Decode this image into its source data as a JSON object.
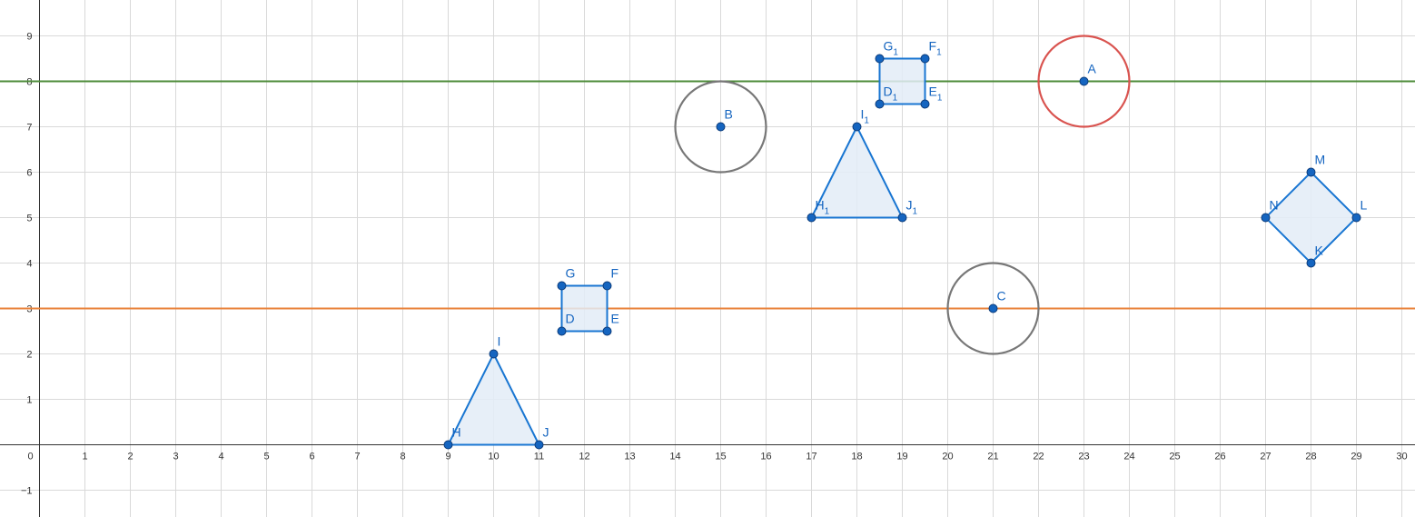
{
  "axes": {
    "x_range": [
      -1,
      31
    ],
    "y_range": [
      -1.6,
      9.8
    ],
    "x_ticks": [
      0,
      1,
      2,
      3,
      4,
      5,
      6,
      7,
      8,
      9,
      10,
      11,
      12,
      13,
      14,
      15,
      16,
      17,
      18,
      19,
      20,
      21,
      22,
      23,
      24,
      25,
      26,
      27,
      28,
      29,
      30
    ],
    "y_ticks": [
      -1,
      1,
      2,
      3,
      4,
      5,
      6,
      7,
      8,
      9
    ],
    "y_tick_labels": [
      "−1",
      "1",
      "2",
      "3",
      "4",
      "5",
      "6",
      "7",
      "8",
      "9"
    ],
    "grid": true
  },
  "colors": {
    "point_fill": "#1565c0",
    "point_stroke": "#0d3c7a",
    "polygon_stroke": "#1976d2",
    "polygon_fill": "#e3ecf7",
    "gray_circle": "#777777",
    "red_circle": "#d9534f",
    "green_line": "#4e8c3a",
    "orange_line": "#e9823a",
    "label": "#1565c0"
  },
  "lines": [
    {
      "y": 8,
      "color": "#4e8c3a"
    },
    {
      "y": 3,
      "color": "#e9823a"
    }
  ],
  "circles": [
    {
      "cx": 15,
      "cy": 7,
      "r": 1,
      "color": "#777777"
    },
    {
      "cx": 21,
      "cy": 3,
      "r": 1,
      "color": "#777777"
    },
    {
      "cx": 23,
      "cy": 8,
      "r": 1,
      "color": "#d9534f"
    }
  ],
  "polygons": [
    {
      "points": [
        [
          9,
          0
        ],
        [
          10,
          2
        ],
        [
          11,
          0
        ]
      ]
    },
    {
      "points": [
        [
          11.5,
          2.5
        ],
        [
          12.5,
          2.5
        ],
        [
          12.5,
          3.5
        ],
        [
          11.5,
          3.5
        ]
      ]
    },
    {
      "points": [
        [
          17,
          5
        ],
        [
          18,
          7
        ],
        [
          19,
          5
        ]
      ]
    },
    {
      "points": [
        [
          18.5,
          7.5
        ],
        [
          19.5,
          7.5
        ],
        [
          19.5,
          8.5
        ],
        [
          18.5,
          8.5
        ]
      ]
    },
    {
      "points": [
        [
          28,
          4
        ],
        [
          29,
          5
        ],
        [
          28,
          6
        ],
        [
          27,
          5
        ]
      ]
    }
  ],
  "points": [
    {
      "name": "A",
      "sub": "",
      "x": 23,
      "y": 8
    },
    {
      "name": "B",
      "sub": "",
      "x": 15,
      "y": 7
    },
    {
      "name": "C",
      "sub": "",
      "x": 21,
      "y": 3
    },
    {
      "name": "D",
      "sub": "",
      "x": 11.5,
      "y": 2.5
    },
    {
      "name": "E",
      "sub": "",
      "x": 12.5,
      "y": 2.5
    },
    {
      "name": "F",
      "sub": "",
      "x": 12.5,
      "y": 3.5
    },
    {
      "name": "G",
      "sub": "",
      "x": 11.5,
      "y": 3.5
    },
    {
      "name": "H",
      "sub": "",
      "x": 9,
      "y": 0
    },
    {
      "name": "I",
      "sub": "",
      "x": 10,
      "y": 2
    },
    {
      "name": "J",
      "sub": "",
      "x": 11,
      "y": 0
    },
    {
      "name": "D",
      "sub": "1",
      "x": 18.5,
      "y": 7.5
    },
    {
      "name": "E",
      "sub": "1",
      "x": 19.5,
      "y": 7.5
    },
    {
      "name": "F",
      "sub": "1",
      "x": 19.5,
      "y": 8.5
    },
    {
      "name": "G",
      "sub": "1",
      "x": 18.5,
      "y": 8.5
    },
    {
      "name": "H",
      "sub": "1",
      "x": 17,
      "y": 5
    },
    {
      "name": "I",
      "sub": "1",
      "x": 18,
      "y": 7
    },
    {
      "name": "J",
      "sub": "1",
      "x": 19,
      "y": 5
    },
    {
      "name": "K",
      "sub": "",
      "x": 28,
      "y": 4
    },
    {
      "name": "L",
      "sub": "",
      "x": 29,
      "y": 5
    },
    {
      "name": "M",
      "sub": "",
      "x": 28,
      "y": 6
    },
    {
      "name": "N",
      "sub": "",
      "x": 27,
      "y": 5
    }
  ]
}
